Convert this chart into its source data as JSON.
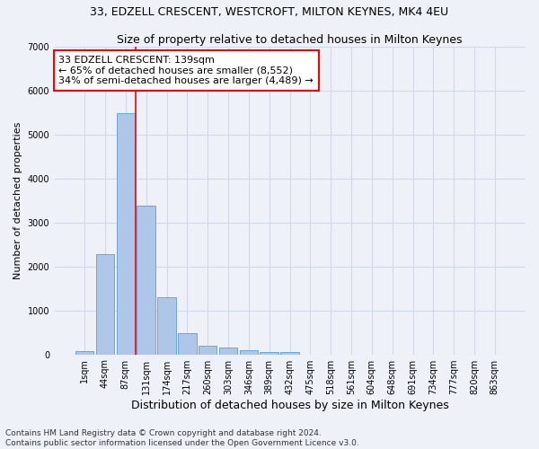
{
  "title": "33, EDZELL CRESCENT, WESTCROFT, MILTON KEYNES, MK4 4EU",
  "subtitle": "Size of property relative to detached houses in Milton Keynes",
  "xlabel": "Distribution of detached houses by size in Milton Keynes",
  "ylabel": "Number of detached properties",
  "bin_labels": [
    "1sqm",
    "44sqm",
    "87sqm",
    "131sqm",
    "174sqm",
    "217sqm",
    "260sqm",
    "303sqm",
    "346sqm",
    "389sqm",
    "432sqm",
    "475sqm",
    "518sqm",
    "561sqm",
    "604sqm",
    "648sqm",
    "691sqm",
    "734sqm",
    "777sqm",
    "820sqm",
    "863sqm"
  ],
  "bar_values": [
    80,
    2280,
    5480,
    3390,
    1290,
    490,
    200,
    165,
    100,
    60,
    50,
    0,
    0,
    0,
    0,
    0,
    0,
    0,
    0,
    0,
    0
  ],
  "bar_color": "#aec6e8",
  "bar_edge_color": "#5a9fd4",
  "grid_color": "#d0d8e8",
  "background_color": "#eef2f8",
  "vline_color": "red",
  "annotation_text": "33 EDZELL CRESCENT: 139sqm\n← 65% of detached houses are smaller (8,552)\n34% of semi-detached houses are larger (4,489) →",
  "annotation_box_color": "white",
  "annotation_box_edge": "red",
  "ylim": [
    0,
    7000
  ],
  "yticks": [
    0,
    1000,
    2000,
    3000,
    4000,
    5000,
    6000,
    7000
  ],
  "footnote": "Contains HM Land Registry data © Crown copyright and database right 2024.\nContains public sector information licensed under the Open Government Licence v3.0.",
  "title_fontsize": 9,
  "subtitle_fontsize": 9,
  "xlabel_fontsize": 9,
  "ylabel_fontsize": 8,
  "tick_fontsize": 7,
  "annotation_fontsize": 8,
  "footnote_fontsize": 6.5
}
